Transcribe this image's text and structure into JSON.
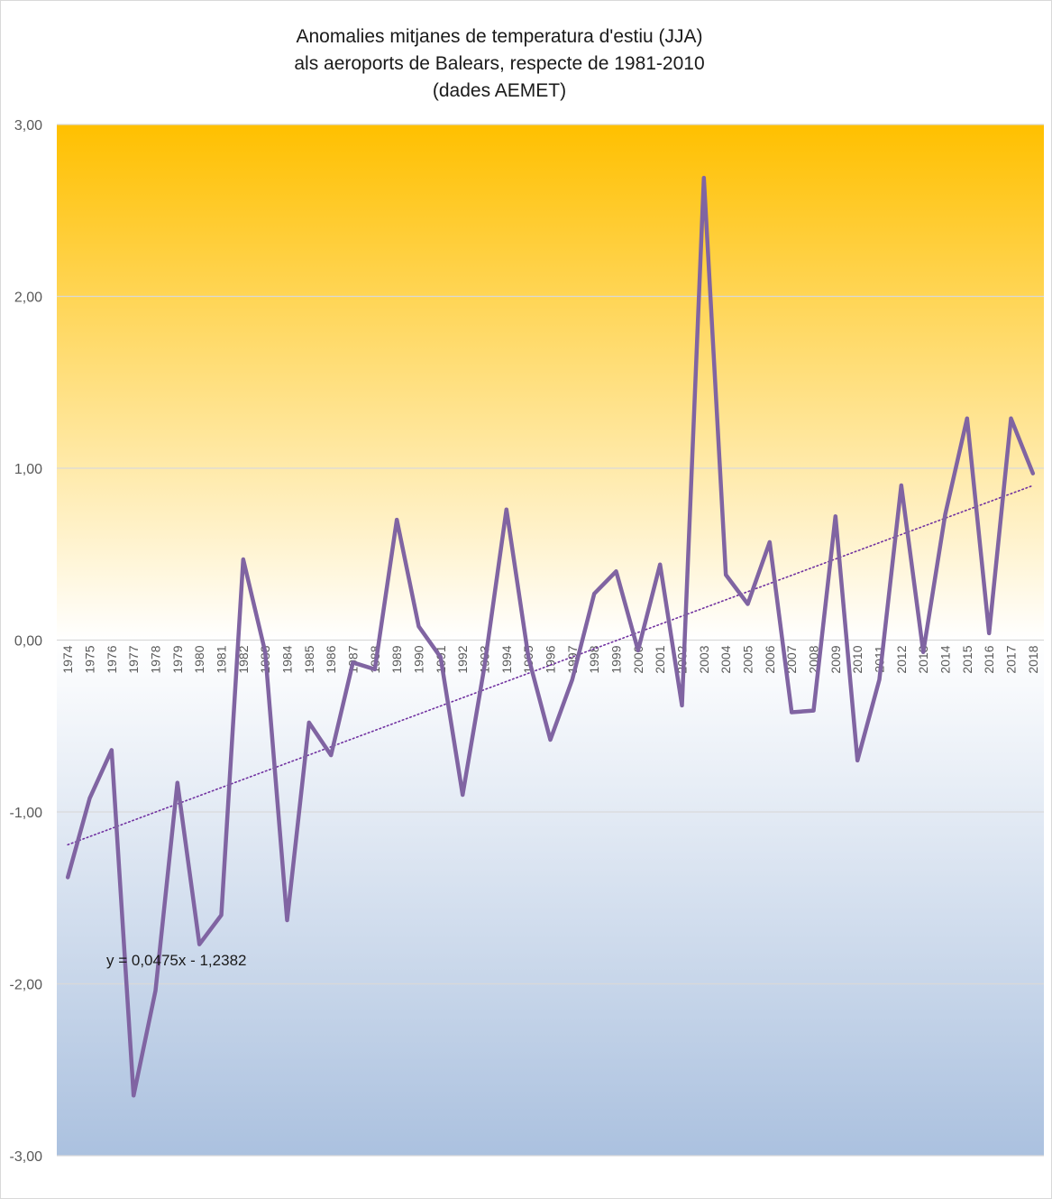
{
  "chart_data": {
    "type": "line",
    "title_lines": [
      "Anomalies mitjanes de temperatura d'estiu (JJA)",
      "als aeroports de Balears, respecte de 1981-2010",
      "(dades AEMET)"
    ],
    "x": [
      "1974",
      "1975",
      "1976",
      "1977",
      "1978",
      "1979",
      "1980",
      "1981",
      "1982",
      "1983",
      "1984",
      "1985",
      "1986",
      "1987",
      "1988",
      "1989",
      "1990",
      "1991",
      "1992",
      "1993",
      "1994",
      "1995",
      "1996",
      "1997",
      "1998",
      "1999",
      "2000",
      "2001",
      "2002",
      "2003",
      "2004",
      "2005",
      "2006",
      "2007",
      "2008",
      "2009",
      "2010",
      "2011",
      "2012",
      "2013",
      "2014",
      "2015",
      "2016",
      "2017",
      "2018"
    ],
    "series": [
      {
        "values": [
          -1.38,
          -0.92,
          -0.64,
          -2.65,
          -2.04,
          -0.83,
          -1.77,
          -1.6,
          0.47,
          -0.07,
          -1.63,
          -0.48,
          -0.67,
          -0.13,
          -0.17,
          0.7,
          0.08,
          -0.1,
          -0.9,
          -0.15,
          0.76,
          -0.1,
          -0.58,
          -0.23,
          0.27,
          0.4,
          -0.06,
          0.44,
          -0.38,
          2.69,
          0.38,
          0.21,
          0.57,
          -0.42,
          -0.41,
          0.72,
          -0.7,
          -0.23,
          0.9,
          -0.07,
          0.73,
          1.29,
          0.04,
          1.29,
          0.97
        ],
        "color": "#8064a2"
      }
    ],
    "trendline": {
      "slope": 0.0475,
      "intercept": -1.2382,
      "label": "y = 0,0475x - 1,2382",
      "color": "#7030a0"
    },
    "y_ticks": [
      "3,00",
      "2,00",
      "1,00",
      "0,00",
      "-1,00",
      "-2,00",
      "-3,00"
    ],
    "ylim": [
      -3,
      3
    ],
    "grid": true,
    "legend": "none",
    "background_colors": {
      "top": "#ffc000",
      "middle": "#ffffff",
      "bottom": "#abc1df"
    }
  }
}
